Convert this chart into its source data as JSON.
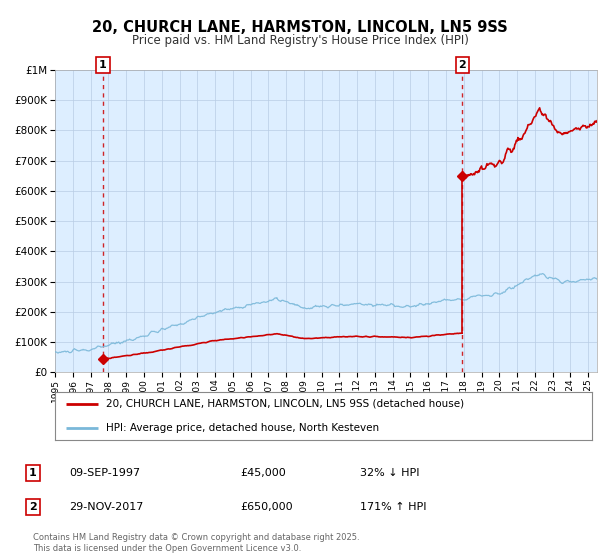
{
  "title": "20, CHURCH LANE, HARMSTON, LINCOLN, LN5 9SS",
  "subtitle": "Price paid vs. HM Land Registry's House Price Index (HPI)",
  "legend_line1": "20, CHURCH LANE, HARMSTON, LINCOLN, LN5 9SS (detached house)",
  "legend_line2": "HPI: Average price, detached house, North Kesteven",
  "annotation1_label": "1",
  "annotation1_date": "09-SEP-1997",
  "annotation1_price": "£45,000",
  "annotation1_hpi": "32% ↓ HPI",
  "annotation2_label": "2",
  "annotation2_date": "29-NOV-2017",
  "annotation2_price": "£650,000",
  "annotation2_hpi": "171% ↑ HPI",
  "footnote": "Contains HM Land Registry data © Crown copyright and database right 2025.\nThis data is licensed under the Open Government Licence v3.0.",
  "sale1_year": 1997.69,
  "sale1_price": 45000,
  "sale2_year": 2017.91,
  "sale2_price": 650000,
  "hpi_color": "#7ab8d9",
  "sale_color": "#cc0000",
  "vline_color": "#cc0000",
  "plot_bg_color": "#ddeeff",
  "ylim": [
    0,
    1000000
  ],
  "xlim_start": 1995,
  "xlim_end": 2025.5
}
